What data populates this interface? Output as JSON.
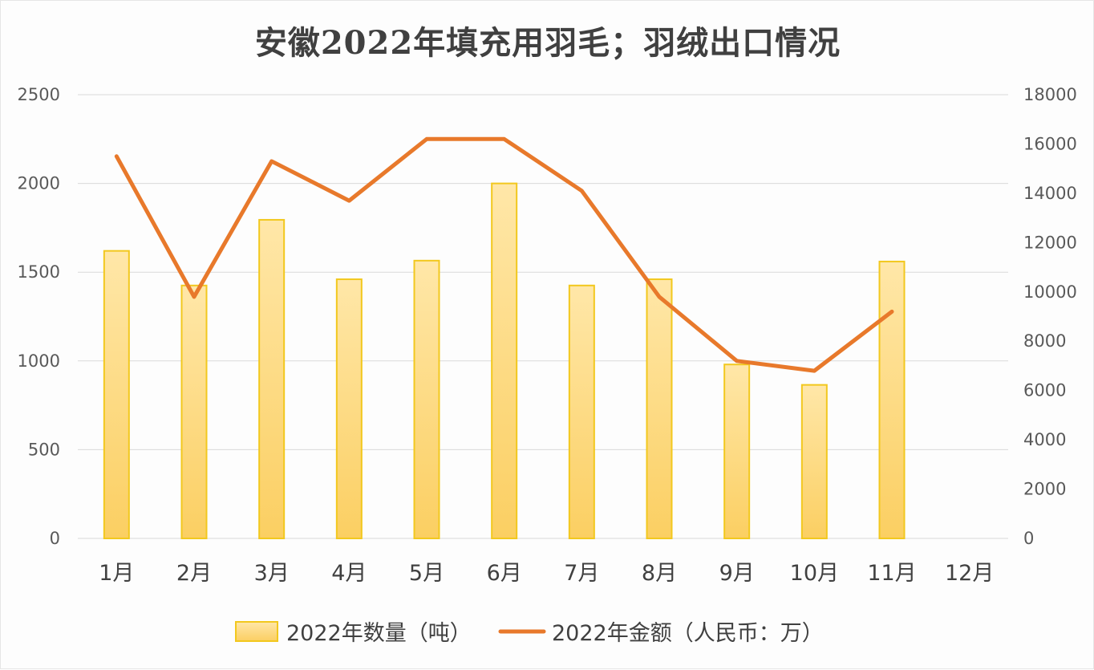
{
  "chart_data": {
    "type": "bar",
    "title": "安徽2022年填充用羽毛；羽绒出口情况",
    "categories": [
      "1月",
      "2月",
      "3月",
      "4月",
      "5月",
      "6月",
      "7月",
      "8月",
      "9月",
      "10月",
      "11月",
      "12月"
    ],
    "series": [
      {
        "name": "2022年数量（吨）",
        "type": "bar",
        "axis": "left",
        "values": [
          1620,
          1425,
          1795,
          1460,
          1565,
          2000,
          1425,
          1460,
          980,
          865,
          1560,
          null
        ]
      },
      {
        "name": "2022年金额（人民币：万）",
        "type": "line",
        "axis": "right",
        "values": [
          15500,
          9800,
          15300,
          13700,
          16200,
          16200,
          14100,
          9800,
          7200,
          6800,
          9200,
          null
        ]
      }
    ],
    "y_left": {
      "min": 0,
      "max": 2500,
      "ticks": [
        0,
        500,
        1000,
        1500,
        2000,
        2500
      ]
    },
    "y_right": {
      "min": 0,
      "max": 18000,
      "ticks": [
        0,
        2000,
        4000,
        6000,
        8000,
        10000,
        12000,
        14000,
        16000,
        18000
      ]
    },
    "grid": true,
    "legend_position": "bottom",
    "colors": {
      "bar_fill_top": "#ffe7a8",
      "bar_fill_bottom": "#fbcf62",
      "bar_stroke": "#f2c81e",
      "line": "#e8792b",
      "grid": "#d9d9d9"
    }
  }
}
